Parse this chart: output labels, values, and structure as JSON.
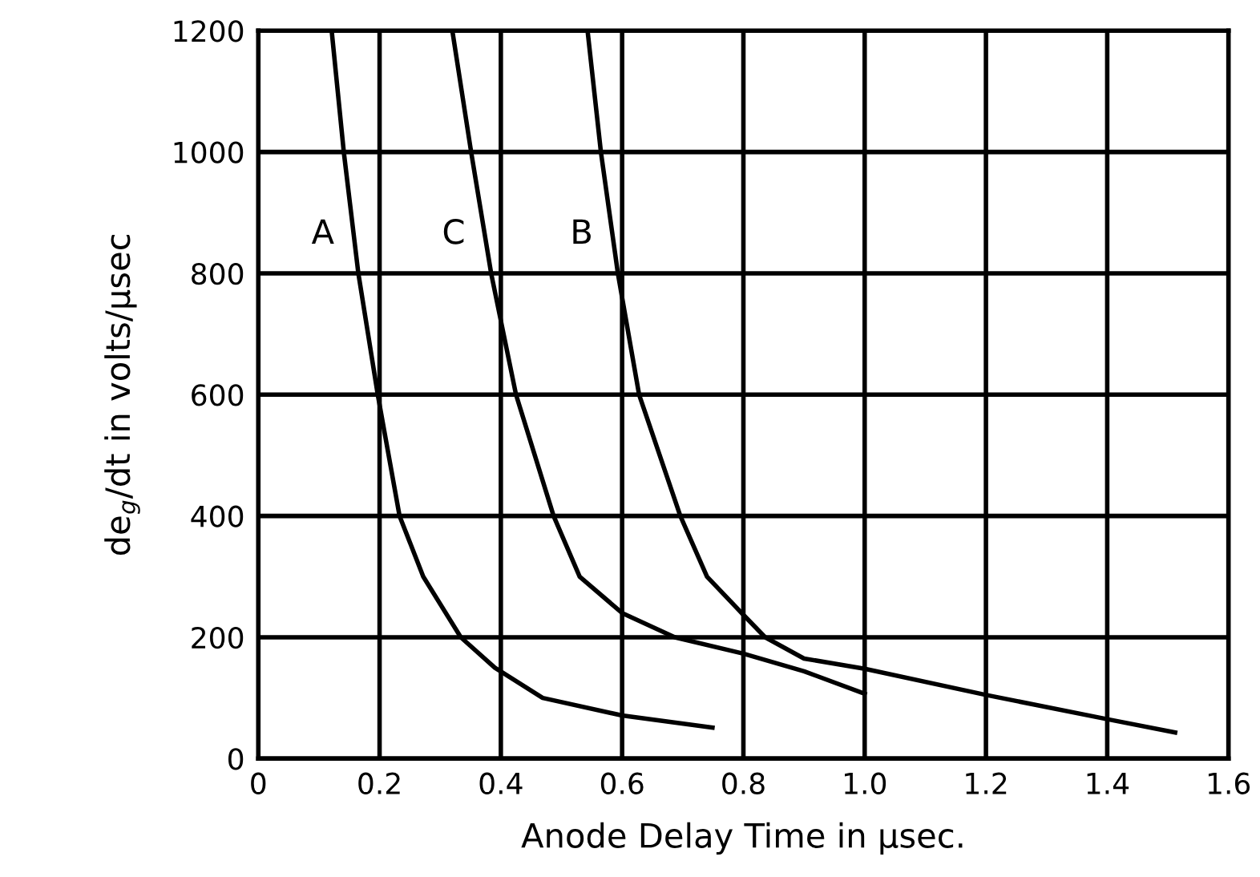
{
  "chart_data": {
    "type": "line",
    "xlabel": "Anode Delay Time in μsec.",
    "ylabel": "de$_{g}$/dt in volts/μsec",
    "series": [
      {
        "name": "A",
        "color": "#000000",
        "x": [
          0.121,
          0.141,
          0.165,
          0.197,
          0.233,
          0.272,
          0.334,
          0.39,
          0.469,
          0.6,
          0.749
        ],
        "values": [
          1200,
          1000,
          800,
          600,
          400,
          300,
          200,
          150,
          100,
          71,
          51
        ]
      },
      {
        "name": "C",
        "color": "#000000",
        "x": [
          0.32,
          0.351,
          0.384,
          0.425,
          0.487,
          0.53,
          0.6,
          0.687,
          0.8,
          0.9,
          1.0
        ],
        "values": [
          1200,
          1000,
          800,
          600,
          400,
          300,
          240,
          200,
          173,
          144,
          107
        ]
      },
      {
        "name": "B",
        "color": "#000000",
        "x": [
          0.543,
          0.565,
          0.593,
          0.628,
          0.696,
          0.74,
          0.8,
          0.836,
          0.9,
          1.0,
          1.2,
          1.4,
          1.512
        ],
        "values": [
          1200,
          1000,
          800,
          600,
          400,
          300,
          237,
          200,
          165,
          148,
          105,
          65,
          43
        ]
      }
    ],
    "xlim": [
      0,
      1.6
    ],
    "ylim": [
      0,
      1200
    ],
    "xticks": [
      0,
      0.2,
      0.4,
      0.6,
      0.8,
      {
        "value": 1,
        "label": "1.0"
      },
      1.2,
      1.4,
      1.6
    ],
    "yticks": [
      0,
      200,
      400,
      600,
      800,
      1000,
      1200
    ],
    "grid": true,
    "legend": false,
    "marker": "none",
    "line_style": "solid"
  }
}
